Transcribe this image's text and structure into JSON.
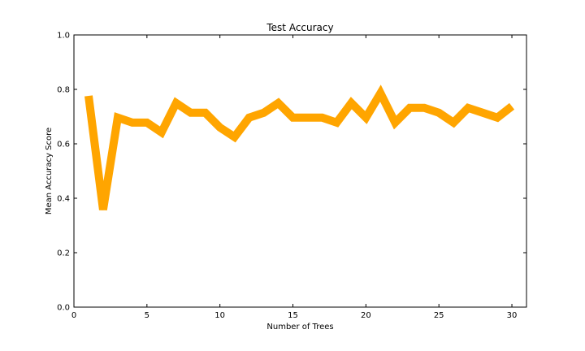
{
  "chart_data": {
    "type": "line",
    "title": "Test Accuracy",
    "xlabel": "Number of Trees",
    "ylabel": "Mean Accuracy Score",
    "xlim": [
      0,
      31
    ],
    "ylim": [
      0.0,
      1.0
    ],
    "xticks": [
      0,
      5,
      10,
      15,
      20,
      25,
      30
    ],
    "yticks": [
      "0.0",
      "0.2",
      "0.4",
      "0.6",
      "0.8",
      "1.0"
    ],
    "grid": false,
    "legend": "none",
    "series": [
      {
        "color": "#FFA500",
        "x": [
          1,
          2,
          3,
          4,
          5,
          6,
          7,
          8,
          9,
          10,
          11,
          12,
          13,
          14,
          15,
          16,
          17,
          18,
          19,
          20,
          21,
          22,
          23,
          24,
          25,
          26,
          27,
          28,
          29,
          30
        ],
        "y": [
          0.776,
          0.358,
          0.696,
          0.678,
          0.678,
          0.642,
          0.75,
          0.714,
          0.714,
          0.66,
          0.625,
          0.696,
          0.714,
          0.75,
          0.696,
          0.696,
          0.696,
          0.678,
          0.75,
          0.696,
          0.786,
          0.678,
          0.732,
          0.732,
          0.714,
          0.678,
          0.732,
          0.714,
          0.696,
          0.738
        ]
      }
    ]
  }
}
